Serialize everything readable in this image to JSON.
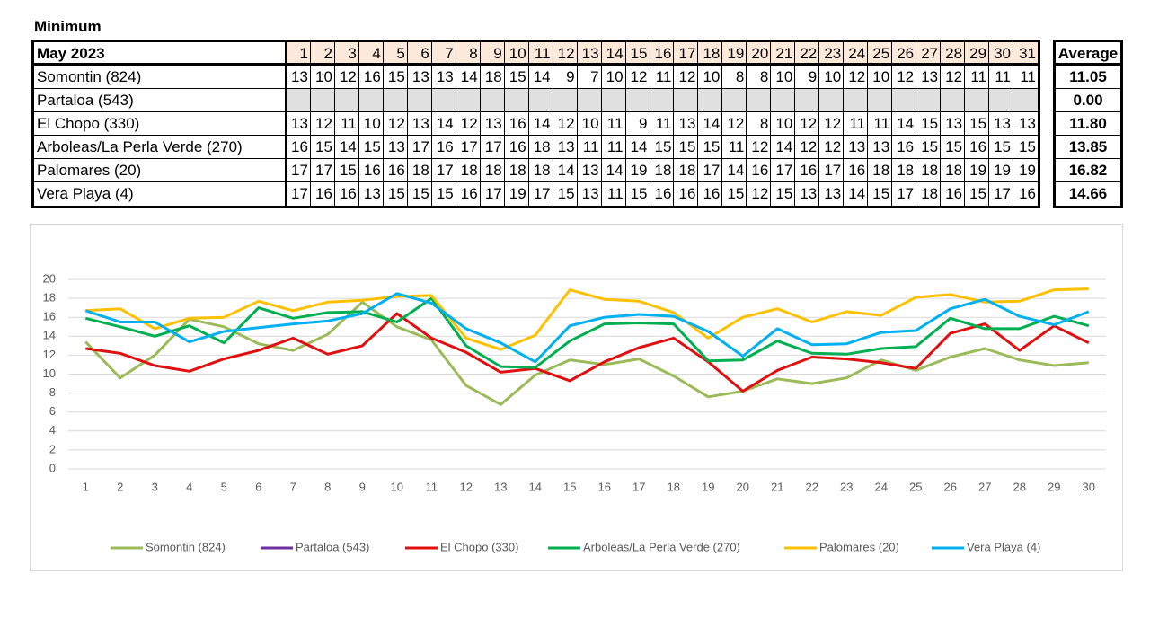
{
  "title": "Minimum",
  "table": {
    "header": [
      "May 2023",
      1,
      2,
      3,
      4,
      5,
      6,
      7,
      8,
      9,
      10,
      11,
      12,
      13,
      14,
      15,
      16,
      17,
      18,
      19,
      20,
      21,
      22,
      23,
      24,
      25,
      26,
      27,
      28,
      29,
      30,
      31
    ],
    "average_header": "Average",
    "rows": [
      {
        "name": "Somontin (824)",
        "values": [
          13,
          10,
          12,
          16,
          15,
          13,
          13,
          14,
          18,
          15,
          14,
          9,
          7,
          10,
          12,
          11,
          12,
          10,
          8,
          8,
          10,
          9,
          10,
          12,
          10,
          12,
          13,
          12,
          11,
          11,
          11
        ],
        "average": "11.05"
      },
      {
        "name": "Partaloa (543)",
        "values": [
          null,
          null,
          null,
          null,
          null,
          null,
          null,
          null,
          null,
          null,
          null,
          null,
          null,
          null,
          null,
          null,
          null,
          null,
          null,
          null,
          null,
          null,
          null,
          null,
          null,
          null,
          null,
          null,
          null,
          null,
          null
        ],
        "average": "0.00"
      },
      {
        "name": "El Chopo (330)",
        "values": [
          13,
          12,
          11,
          10,
          12,
          13,
          14,
          12,
          13,
          16,
          14,
          12,
          10,
          11,
          9,
          11,
          13,
          14,
          12,
          8,
          10,
          12,
          12,
          11,
          11,
          14,
          15,
          13,
          15,
          13,
          13
        ],
        "average": "11.80"
      },
      {
        "name": "Arboleas/La Perla Verde (270)",
        "values": [
          16,
          15,
          14,
          15,
          13,
          17,
          16,
          17,
          17,
          16,
          18,
          13,
          11,
          11,
          14,
          15,
          15,
          15,
          11,
          12,
          14,
          12,
          12,
          13,
          13,
          16,
          15,
          15,
          16,
          15,
          15
        ],
        "average": "13.85"
      },
      {
        "name": "Palomares (20)",
        "values": [
          17,
          17,
          15,
          16,
          16,
          18,
          17,
          18,
          18,
          18,
          18,
          14,
          13,
          14,
          19,
          18,
          18,
          17,
          14,
          16,
          17,
          16,
          17,
          16,
          18,
          18,
          18,
          18,
          19,
          19,
          19
        ],
        "average": "16.82"
      },
      {
        "name": "Vera Playa (4)",
        "values": [
          17,
          16,
          16,
          13,
          15,
          15,
          15,
          16,
          17,
          19,
          17,
          15,
          13,
          11,
          15,
          16,
          16,
          16,
          15,
          12,
          15,
          13,
          13,
          14,
          15,
          17,
          18,
          16,
          15,
          17,
          16
        ],
        "average": "14.66"
      }
    ]
  },
  "chart_data": {
    "type": "line",
    "categories": [
      1,
      2,
      3,
      4,
      5,
      6,
      7,
      8,
      9,
      10,
      11,
      12,
      13,
      14,
      15,
      16,
      17,
      18,
      19,
      20,
      21,
      22,
      23,
      24,
      25,
      26,
      27,
      28,
      29,
      30
    ],
    "ylim": [
      0,
      20
    ],
    "yticks": [
      0,
      2,
      4,
      6,
      8,
      10,
      12,
      14,
      16,
      18,
      20
    ],
    "grid": true,
    "legend": "bottom",
    "series": [
      {
        "name": "Somontin (824)",
        "color": "#9bbb59",
        "values": [
          13.4,
          9.6,
          12,
          15.8,
          15,
          13.2,
          12.5,
          14.2,
          17.6,
          15,
          13.6,
          8.8,
          6.8,
          9.9,
          11.5,
          11,
          11.6,
          9.8,
          7.6,
          8.2,
          9.5,
          9,
          9.6,
          11.5,
          10.4,
          11.8,
          12.7,
          11.5,
          10.9,
          11.2
        ]
      },
      {
        "name": "Partaloa (543)",
        "color": "#7030a0",
        "values": [
          null,
          null,
          null,
          null,
          null,
          null,
          null,
          null,
          null,
          null,
          null,
          null,
          null,
          null,
          null,
          null,
          null,
          null,
          null,
          null,
          null,
          null,
          null,
          null,
          null,
          null,
          null,
          null,
          null,
          null
        ]
      },
      {
        "name": "El Chopo (330)",
        "color": "#e01010",
        "values": [
          12.7,
          12.2,
          10.9,
          10.3,
          11.6,
          12.5,
          13.8,
          12.1,
          13,
          16.4,
          13.8,
          12.3,
          10.2,
          10.6,
          9.3,
          11.3,
          12.8,
          13.8,
          11.3,
          8.2,
          10.4,
          11.8,
          11.6,
          11.2,
          10.6,
          14.3,
          15.3,
          12.5,
          15.1,
          13.3
        ]
      },
      {
        "name": "Arboleas/La Perla Verde (270)",
        "color": "#00b050",
        "values": [
          15.9,
          15,
          14,
          15.1,
          13.3,
          17,
          15.9,
          16.5,
          16.6,
          15.5,
          18,
          13,
          10.8,
          10.7,
          13.5,
          15.3,
          15.4,
          15.3,
          11.4,
          11.5,
          13.5,
          12.2,
          12.1,
          12.7,
          12.9,
          15.9,
          14.8,
          14.8,
          16.1,
          15.1
        ]
      },
      {
        "name": "Palomares (20)",
        "color": "#ffc000",
        "values": [
          16.7,
          16.9,
          14.8,
          15.9,
          16,
          17.7,
          16.7,
          17.6,
          17.8,
          18.2,
          18.3,
          13.8,
          12.6,
          14.1,
          18.9,
          17.9,
          17.7,
          16.5,
          13.8,
          16,
          16.9,
          15.5,
          16.6,
          16.2,
          18.1,
          18.4,
          17.6,
          17.7,
          18.9,
          19
        ]
      },
      {
        "name": "Vera Playa (4)",
        "color": "#00b0f0",
        "values": [
          16.7,
          15.5,
          15.5,
          13.4,
          14.5,
          14.9,
          15.3,
          15.6,
          16.4,
          18.5,
          17.5,
          14.8,
          13.3,
          11.3,
          15.1,
          16,
          16.3,
          16.1,
          14.5,
          11.9,
          14.8,
          13.1,
          13.2,
          14.4,
          14.6,
          16.9,
          17.9,
          16.1,
          15.2,
          16.6
        ]
      }
    ]
  }
}
